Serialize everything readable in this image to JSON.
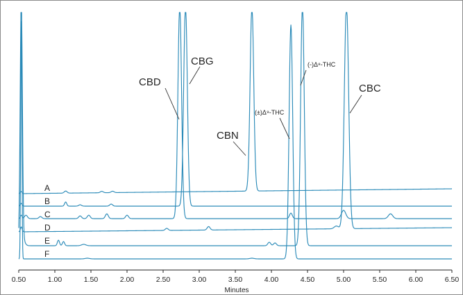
{
  "chart_data": {
    "type": "line",
    "xlabel": "Minutes",
    "xlim": [
      0.5,
      6.5
    ],
    "x_ticks": [
      "0.50",
      "1.00",
      "1.50",
      "2.00",
      "2.50",
      "3.00",
      "3.50",
      "4.00",
      "4.50",
      "5.00",
      "5.50",
      "6.00",
      "6.50"
    ],
    "series": [
      {
        "name": "A",
        "peaks": [
          {
            "x": 3.73,
            "label": "CBN"
          }
        ]
      },
      {
        "name": "B",
        "peaks": [
          {
            "x": 2.81,
            "label": "CBG"
          }
        ]
      },
      {
        "name": "C",
        "peaks": [
          {
            "x": 2.73,
            "label": "CBD"
          }
        ]
      },
      {
        "name": "D",
        "peaks": [
          {
            "x": 5.04,
            "label": "CBC"
          }
        ]
      },
      {
        "name": "E",
        "peaks": [
          {
            "x": 4.43,
            "label": "(-)Δ⁸-THC"
          }
        ]
      },
      {
        "name": "F",
        "peaks": [
          {
            "x": 4.27,
            "label": "(±)Δ⁹-THC"
          }
        ]
      }
    ]
  },
  "peak_labels": {
    "cbd": "CBD",
    "cbg": "CBG",
    "cbn": "CBN",
    "d9": "(±)Δ⁹-THC",
    "d8": "(-)Δ⁸-THC",
    "cbc": "CBC"
  },
  "colors": {
    "trace": "#2a8ab8",
    "axis": "#222222",
    "leader": "#333333"
  }
}
